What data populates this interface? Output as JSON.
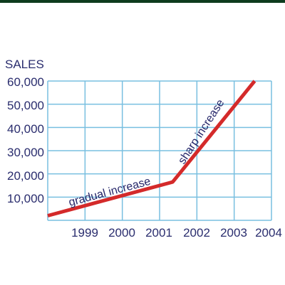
{
  "chart_data": {
    "type": "line",
    "ylabel": "SALES",
    "y_tick_labels": [
      "60,000",
      "50,000",
      "40,000",
      "30,000",
      "20,000",
      "10,000"
    ],
    "y_ticks": [
      60000,
      50000,
      40000,
      30000,
      20000,
      10000
    ],
    "x_tick_labels": [
      "1999",
      "2000",
      "2001",
      "2002",
      "2003",
      "2004"
    ],
    "xlim": [
      1998,
      2004
    ],
    "ylim": [
      0,
      60000
    ],
    "grid": true,
    "series": [
      {
        "points": [
          {
            "x": 1998,
            "y": 2000
          },
          {
            "x": 2001.35,
            "y": 16500
          },
          {
            "x": 2003.55,
            "y": 60000
          }
        ]
      }
    ],
    "annotations": [
      "gradual increase",
      "sharp increase"
    ],
    "colors": {
      "line": "#d42a2a",
      "grid": "#79bfe0",
      "text": "#2a2d6e",
      "frame": "#0d3b1e"
    }
  }
}
